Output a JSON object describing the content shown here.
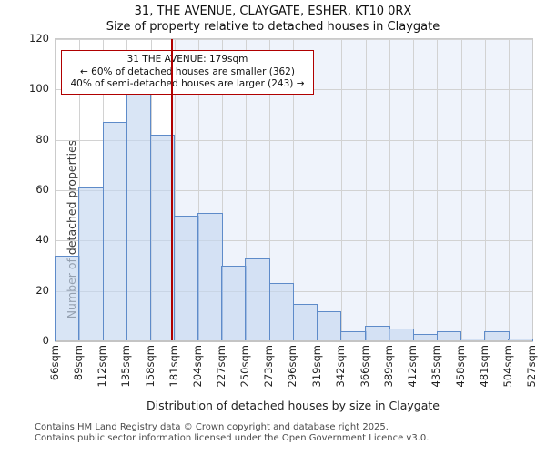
{
  "title": "31, THE AVENUE, CLAYGATE, ESHER, KT10 0RX",
  "subtitle": "Size of property relative to detached houses in Claygate",
  "annotation": {
    "line1": "31 THE AVENUE: 179sqm",
    "line2": "← 60% of detached houses are smaller (362)",
    "line3": "40% of semi-detached houses are larger (243) →"
  },
  "chart_data": {
    "type": "bar",
    "title": "31, THE AVENUE, CLAYGATE, ESHER, KT10 0RX",
    "subtitle": "Size of property relative to detached houses in Claygate",
    "xlabel": "Distribution of detached houses by size in Claygate",
    "ylabel": "Number of detached properties",
    "ylim": [
      0,
      120
    ],
    "yticks": [
      0,
      20,
      40,
      60,
      80,
      100,
      120
    ],
    "grid": true,
    "x_edges_sqm": [
      66,
      89,
      112,
      135,
      158,
      181,
      204,
      227,
      250,
      273,
      296,
      319,
      342,
      366,
      389,
      412,
      435,
      458,
      481,
      504,
      527
    ],
    "categories": [
      "66sqm",
      "89sqm",
      "112sqm",
      "135sqm",
      "158sqm",
      "181sqm",
      "204sqm",
      "227sqm",
      "250sqm",
      "273sqm",
      "296sqm",
      "319sqm",
      "342sqm",
      "366sqm",
      "389sqm",
      "412sqm",
      "435sqm",
      "458sqm",
      "481sqm",
      "504sqm",
      "527sqm"
    ],
    "values": [
      34,
      61,
      87,
      99,
      82,
      50,
      51,
      30,
      33,
      23,
      15,
      12,
      4,
      6,
      5,
      3,
      4,
      1,
      4,
      1
    ],
    "marker_value_sqm": 179,
    "smaller_count": 362,
    "larger_count": 243,
    "colors": {
      "bar_fill": "#dbe6f5",
      "bar_border": "#5e8bc9",
      "marker_line": "#b00000",
      "annotation_border": "#b00000",
      "shade_right_of_marker": "#eff3fb",
      "gridline": "#d2d2d2"
    }
  },
  "footer": {
    "line1": "Contains HM Land Registry data © Crown copyright and database right 2025.",
    "line2": "Contains public sector information licensed under the Open Government Licence v3.0."
  }
}
